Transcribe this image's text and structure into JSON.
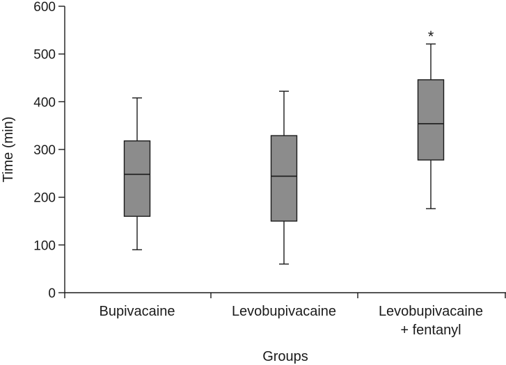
{
  "chart_data": {
    "type": "box",
    "xlabel": "Groups",
    "ylabel": "Time (min)",
    "ylim": [
      0,
      600
    ],
    "yticks": [
      0,
      100,
      200,
      300,
      400,
      500,
      600
    ],
    "grid": false,
    "categories": [
      {
        "lines": [
          "Bupivacaine"
        ]
      },
      {
        "lines": [
          "Levobupivacaine"
        ]
      },
      {
        "lines": [
          "Levobupivacaine",
          "+ fentanyl"
        ]
      }
    ],
    "boxes": [
      {
        "min": 90,
        "q1": 160,
        "median": 248,
        "q3": 318,
        "max": 408,
        "annotation": ""
      },
      {
        "min": 60,
        "q1": 150,
        "median": 244,
        "q3": 329,
        "max": 422,
        "annotation": ""
      },
      {
        "min": 176,
        "q1": 278,
        "median": 354,
        "q3": 446,
        "max": 521,
        "annotation": "*"
      }
    ],
    "colors": {
      "box_fill": "#8c8c8c",
      "line": "#1a1a1a"
    }
  }
}
